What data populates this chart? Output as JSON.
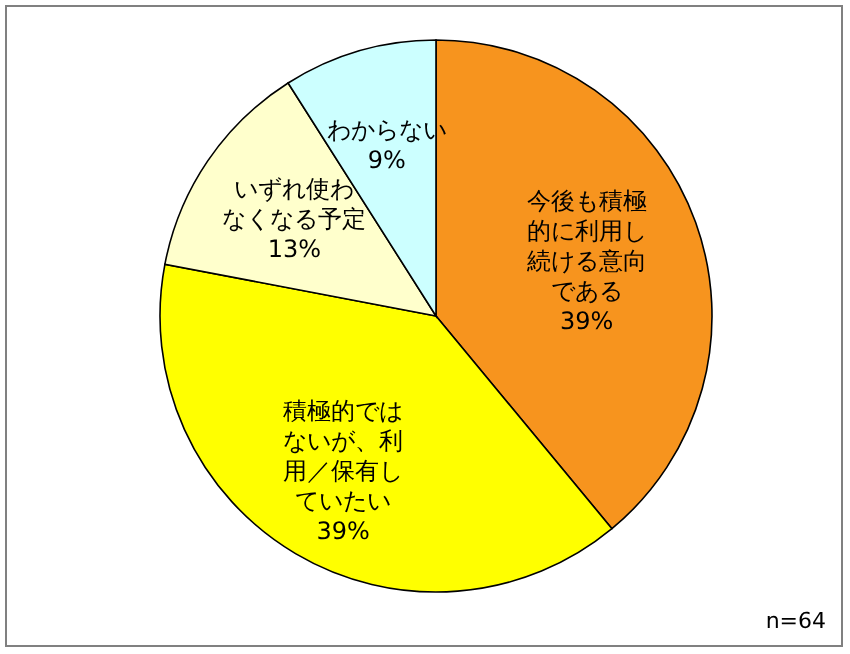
{
  "chart_data": {
    "type": "pie",
    "categories": [
      "今後も積極的に利用し続ける意向である",
      "積極的ではないが、利用／保有していたい",
      "いずれ使わなくなる予定",
      "わからない"
    ],
    "values": [
      39,
      39,
      13,
      9
    ],
    "colors": [
      "#f7941e",
      "#ffff00",
      "#ffffcc",
      "#ccffff"
    ],
    "value_labels": [
      "39%",
      "39%",
      "13%",
      "9%"
    ],
    "annotations": [
      "n=64"
    ]
  }
}
